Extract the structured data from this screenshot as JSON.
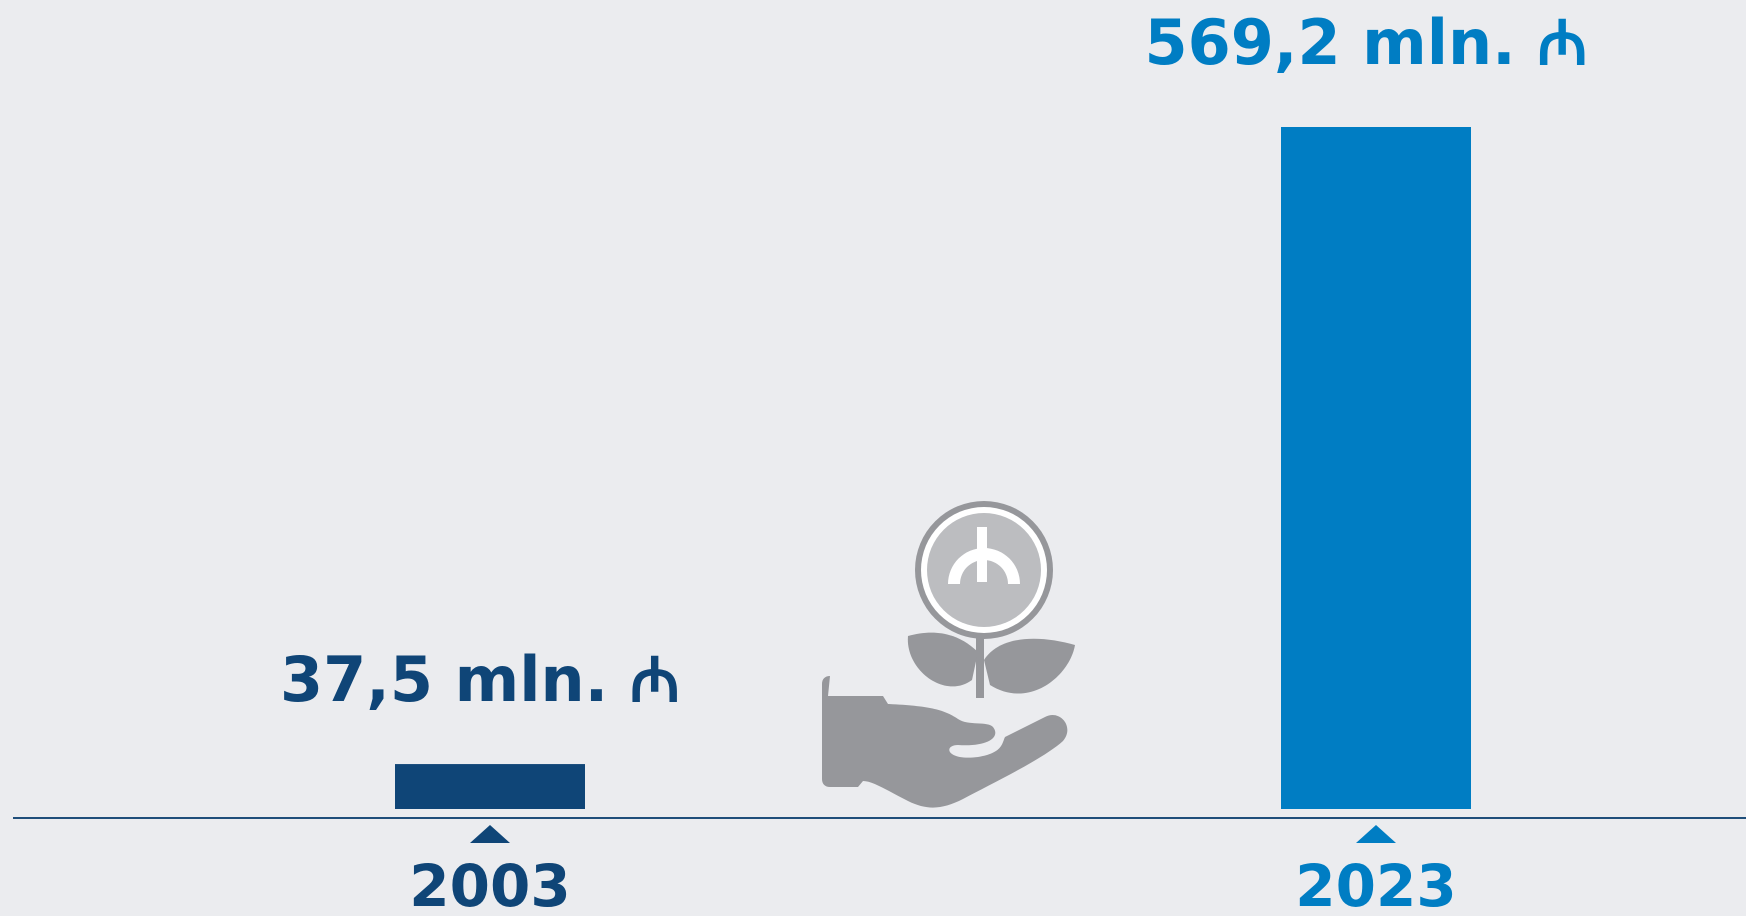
{
  "chart_data": {
    "type": "bar",
    "categories": [
      "2003",
      "2023"
    ],
    "values": [
      37.5,
      569.2
    ],
    "value_labels": [
      "37,5 mln. ₼",
      "569,2 mln. ₼"
    ],
    "colors": [
      "#0f4577",
      "#007dc3"
    ]
  }
}
